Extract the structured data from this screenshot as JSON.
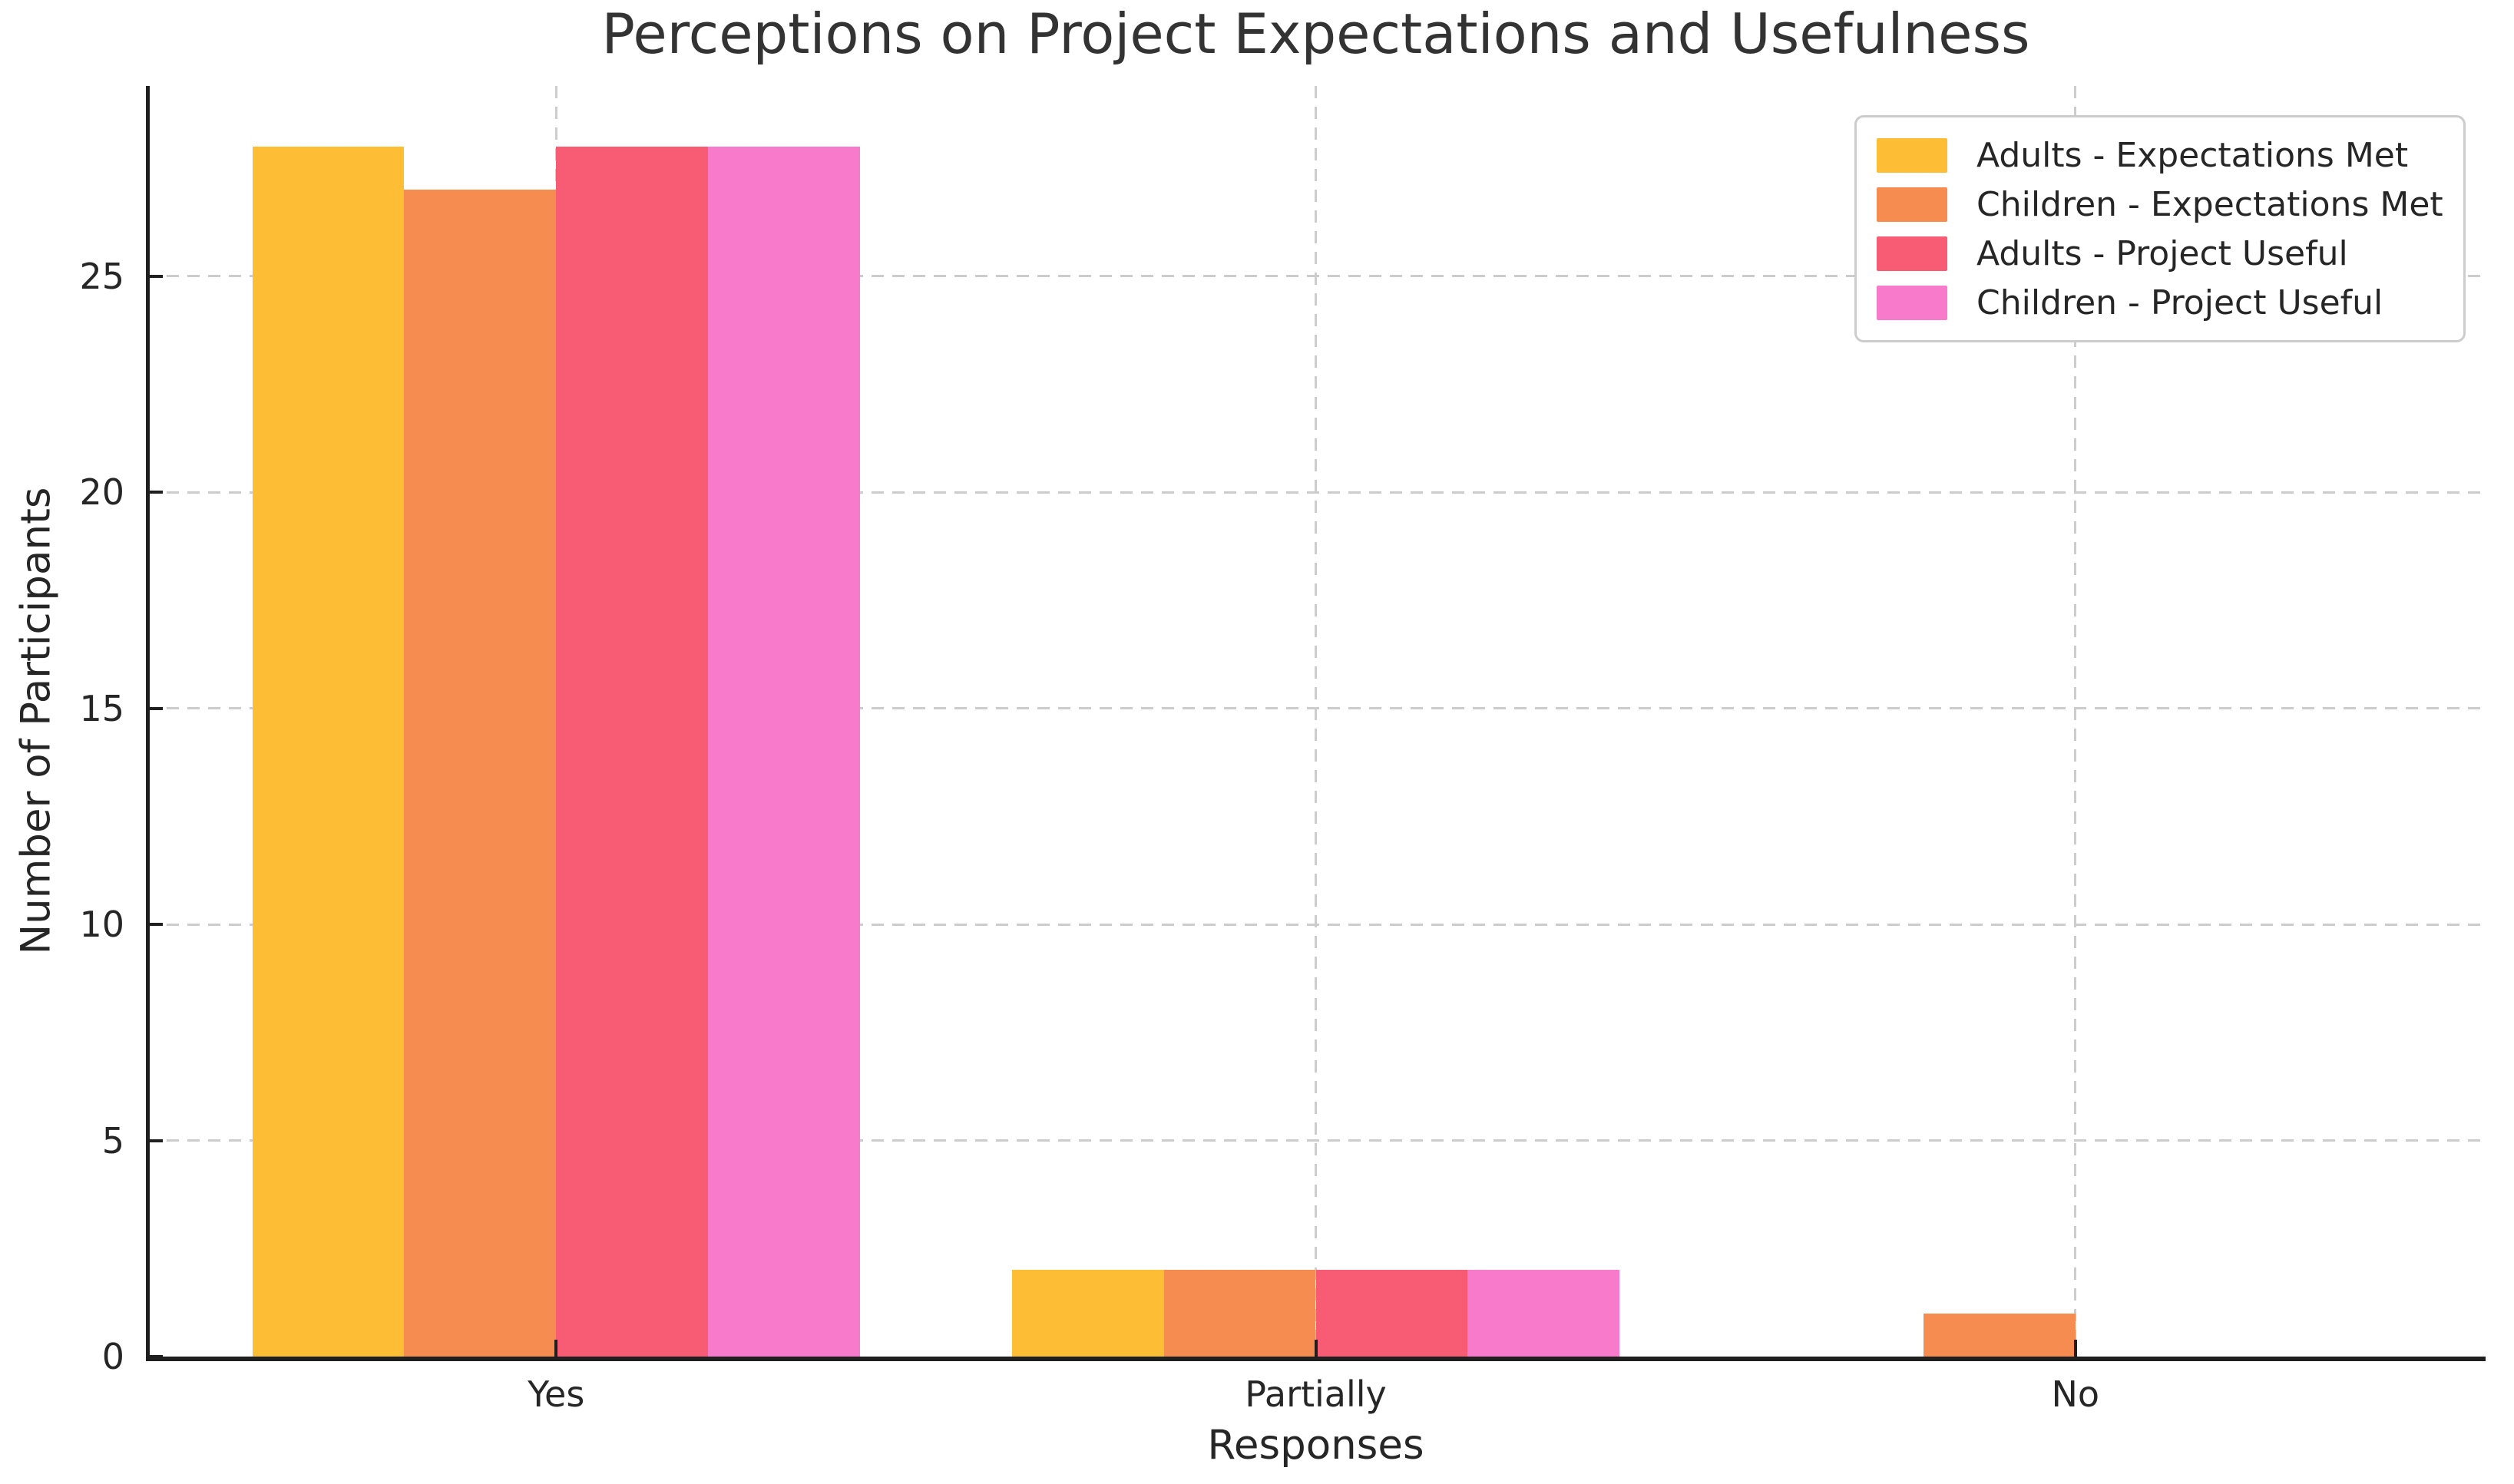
{
  "chart_data": {
    "type": "bar",
    "title": "Perceptions on Project Expectations and Usefulness",
    "xlabel": "Responses",
    "ylabel": "Number of Participants",
    "categories": [
      "Yes",
      "Partially",
      "No"
    ],
    "series": [
      {
        "name": "Adults - Expectations Met",
        "color": "#FDBE35",
        "values": [
          28,
          2,
          0
        ]
      },
      {
        "name": "Children - Expectations Met",
        "color": "#F68C4F",
        "values": [
          27,
          2,
          1
        ]
      },
      {
        "name": "Adults - Project Useful",
        "color": "#F85C75",
        "values": [
          28,
          2,
          0
        ]
      },
      {
        "name": "Children - Project Useful",
        "color": "#F87BCB",
        "values": [
          28,
          2,
          0
        ]
      }
    ],
    "yticks": [
      0,
      5,
      10,
      15,
      20,
      25
    ],
    "ylim": [
      0,
      29.4
    ],
    "xlim": [
      -0.54,
      2.54
    ],
    "bar_width": 0.2,
    "grid": {
      "visible": true,
      "line_style": "dashed",
      "color": "#cccccc",
      "axes": "both"
    },
    "legend": {
      "position": "upper right"
    }
  },
  "style": {
    "background": "#ffffff",
    "text_color": "#262626",
    "title_color": "#333333",
    "spine_color": "#1f1f1f",
    "grid_color": "#cccccc",
    "legend_border_color": "#cccccc"
  }
}
